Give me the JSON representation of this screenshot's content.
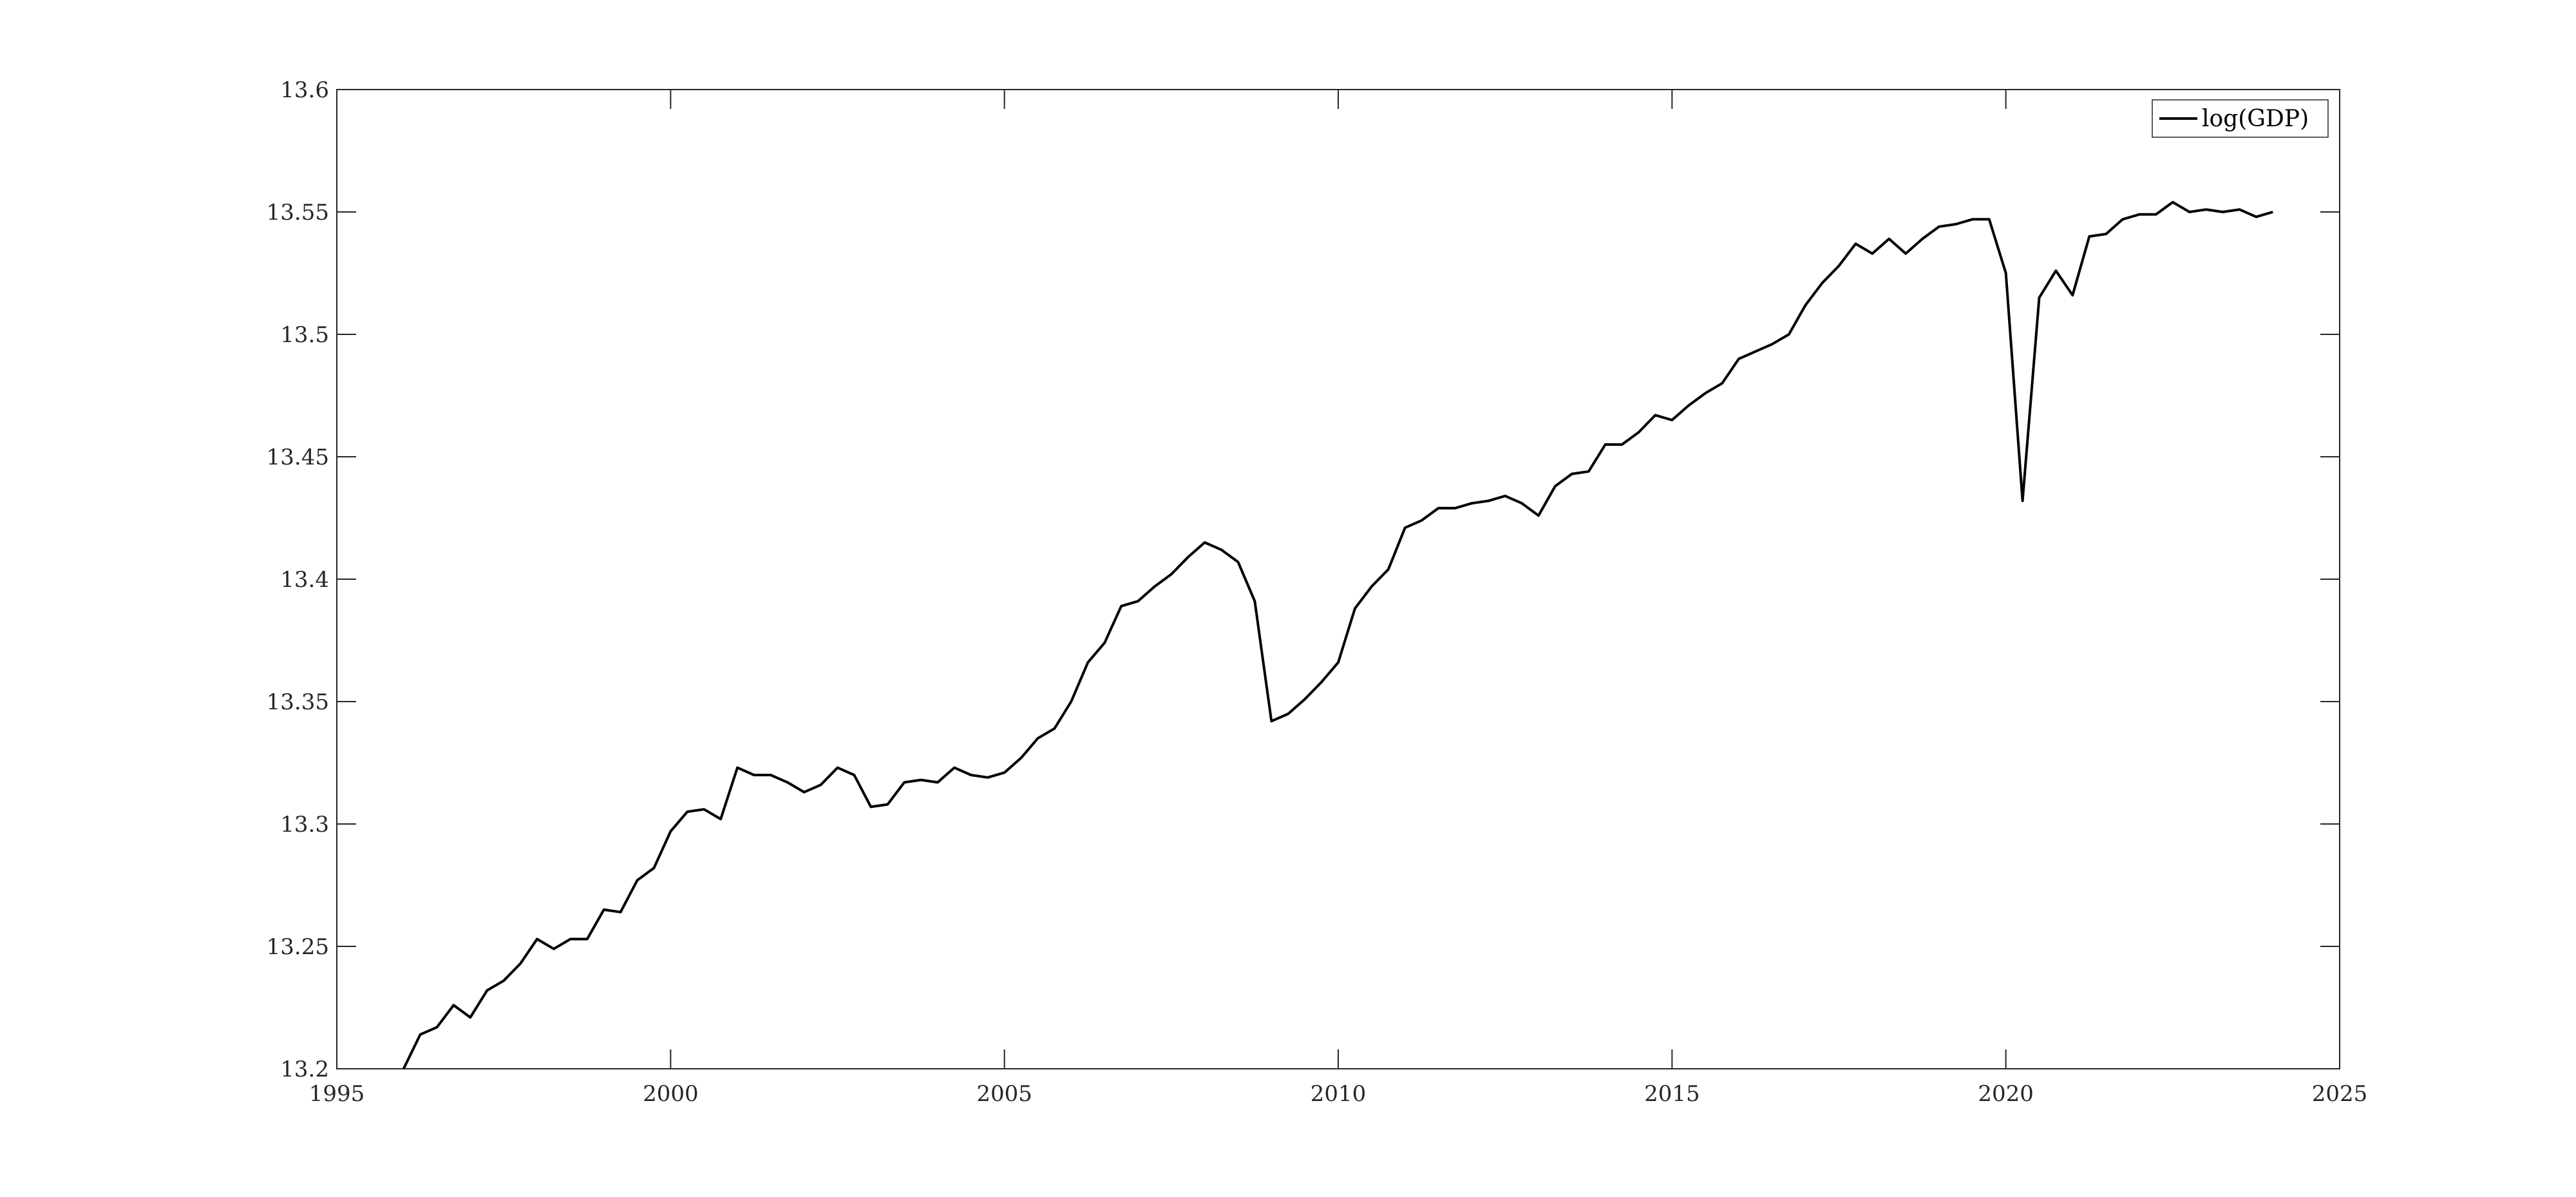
{
  "chart_data": {
    "type": "line",
    "title": "",
    "xlabel": "",
    "ylabel": "",
    "xlim": [
      1995,
      2025
    ],
    "ylim": [
      13.2,
      13.6
    ],
    "xticks": [
      1995,
      2000,
      2005,
      2010,
      2015,
      2020,
      2025
    ],
    "xtick_labels": [
      "1995",
      "2000",
      "2005",
      "2010",
      "2015",
      "2020",
      "2025"
    ],
    "yticks": [
      13.2,
      13.25,
      13.3,
      13.35,
      13.4,
      13.45,
      13.5,
      13.55,
      13.6
    ],
    "ytick_labels": [
      "13.2",
      "13.25",
      "13.3",
      "13.35",
      "13.4",
      "13.45",
      "13.5",
      "13.55",
      "13.6"
    ],
    "grid": false,
    "legend_position": "top-right",
    "series": [
      {
        "name": "log(GDP)",
        "color": "#000000",
        "x": [
          1996.0,
          1996.25,
          1996.5,
          1996.75,
          1997.0,
          1997.25,
          1997.5,
          1997.75,
          1998.0,
          1998.25,
          1998.5,
          1998.75,
          1999.0,
          1999.25,
          1999.5,
          1999.75,
          2000.0,
          2000.25,
          2000.5,
          2000.75,
          2001.0,
          2001.25,
          2001.5,
          2001.75,
          2002.0,
          2002.25,
          2002.5,
          2002.75,
          2003.0,
          2003.25,
          2003.5,
          2003.75,
          2004.0,
          2004.25,
          2004.5,
          2004.75,
          2005.0,
          2005.25,
          2005.5,
          2005.75,
          2006.0,
          2006.25,
          2006.5,
          2006.75,
          2007.0,
          2007.25,
          2007.5,
          2007.75,
          2008.0,
          2008.25,
          2008.5,
          2008.75,
          2009.0,
          2009.25,
          2009.5,
          2009.75,
          2010.0,
          2010.25,
          2010.5,
          2010.75,
          2011.0,
          2011.25,
          2011.5,
          2011.75,
          2012.0,
          2012.25,
          2012.5,
          2012.75,
          2013.0,
          2013.25,
          2013.5,
          2013.75,
          2014.0,
          2014.25,
          2014.5,
          2014.75,
          2015.0,
          2015.25,
          2015.5,
          2015.75,
          2016.0,
          2016.25,
          2016.5,
          2016.75,
          2017.0,
          2017.25,
          2017.5,
          2017.75,
          2018.0,
          2018.25,
          2018.5,
          2018.75,
          2019.0,
          2019.25,
          2019.5,
          2019.75,
          2020.0,
          2020.25,
          2020.5,
          2020.75,
          2021.0,
          2021.25,
          2021.5,
          2021.75,
          2022.0,
          2022.25,
          2022.5,
          2022.75,
          2023.0,
          2023.25,
          2023.5,
          2023.75,
          2024.0
        ],
        "values": [
          13.2,
          13.214,
          13.217,
          13.226,
          13.221,
          13.232,
          13.236,
          13.243,
          13.253,
          13.249,
          13.253,
          13.253,
          13.265,
          13.264,
          13.277,
          13.282,
          13.297,
          13.305,
          13.306,
          13.302,
          13.323,
          13.32,
          13.32,
          13.317,
          13.313,
          13.316,
          13.323,
          13.32,
          13.307,
          13.308,
          13.317,
          13.318,
          13.317,
          13.323,
          13.32,
          13.319,
          13.321,
          13.327,
          13.335,
          13.339,
          13.35,
          13.366,
          13.374,
          13.389,
          13.391,
          13.397,
          13.402,
          13.409,
          13.415,
          13.412,
          13.407,
          13.391,
          13.342,
          13.345,
          13.351,
          13.358,
          13.366,
          13.388,
          13.397,
          13.404,
          13.421,
          13.424,
          13.429,
          13.429,
          13.431,
          13.432,
          13.434,
          13.431,
          13.426,
          13.438,
          13.443,
          13.444,
          13.455,
          13.455,
          13.46,
          13.467,
          13.465,
          13.471,
          13.476,
          13.48,
          13.49,
          13.493,
          13.496,
          13.5,
          13.512,
          13.521,
          13.528,
          13.537,
          13.533,
          13.539,
          13.533,
          13.539,
          13.544,
          13.545,
          13.547,
          13.547,
          13.525,
          13.432,
          13.515,
          13.526,
          13.516,
          13.54,
          13.541,
          13.547,
          13.549,
          13.549,
          13.554,
          13.55,
          13.551,
          13.55,
          13.551,
          13.548,
          13.55
        ]
      }
    ]
  }
}
